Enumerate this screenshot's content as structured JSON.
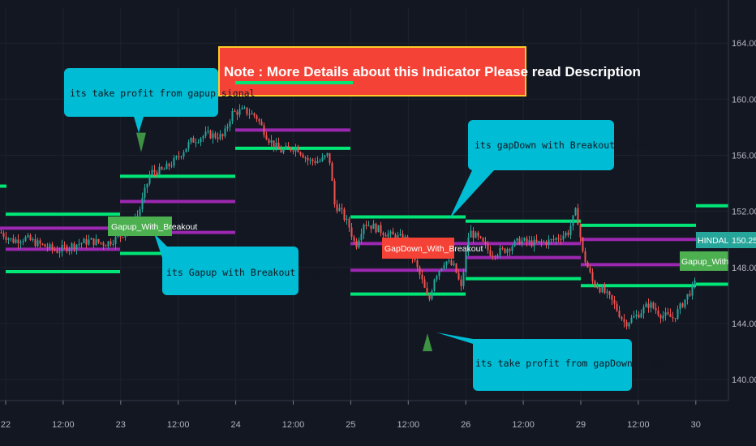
{
  "chart_data": {
    "type": "candlestick",
    "symbol": "HINDALCO",
    "last_price": "150.25",
    "y_ticks": [
      "164.00",
      "160.00",
      "156.00",
      "152.00",
      "148.00",
      "144.00",
      "140.00"
    ],
    "y_range": [
      138.5,
      166.5
    ],
    "x_ticks": [
      "22",
      "12:00",
      "23",
      "12:00",
      "24",
      "12:00",
      "25",
      "12:00",
      "26",
      "12:00",
      "29",
      "12:00",
      "30"
    ],
    "note": "Note : More Details about this Indicator Please read Description",
    "callouts": [
      "its take profit from gapup signal",
      "its Gapup with Breakout signal",
      "its gapDown with Breakout signal",
      "its take profit from gapDown signal"
    ],
    "signal_labels": {
      "gapup": "Gapup_With_Breakout",
      "gapdown": "GapDown_With_Breakout",
      "gapup_right": "Gapup_With_Brea"
    },
    "colors": {
      "background": "#131722",
      "up": "#26a69a",
      "down": "#ef5350",
      "green_level": "#00e676",
      "purple_level": "#9c27b0",
      "callout": "#00bcd4",
      "note_bg": "#f44336",
      "signal_up": "#4caf50",
      "signal_down": "#f44336"
    },
    "levels": [
      {
        "color": "green",
        "y": 153.8,
        "x0": 0,
        "x1": 8
      },
      {
        "color": "green",
        "y": 151.8,
        "x0": 7,
        "x1": 148
      },
      {
        "color": "purple",
        "y": 150.8,
        "x0": 0,
        "x1": 148
      },
      {
        "color": "purple",
        "y": 149.3,
        "x0": 7,
        "x1": 148
      },
      {
        "color": "green",
        "y": 147.7,
        "x0": 7,
        "x1": 148
      },
      {
        "color": "green",
        "y": 154.5,
        "x0": 148,
        "x1": 290
      },
      {
        "color": "purple",
        "y": 152.7,
        "x0": 148,
        "x1": 290
      },
      {
        "color": "purple",
        "y": 150.5,
        "x0": 148,
        "x1": 290
      },
      {
        "color": "green",
        "y": 149.0,
        "x0": 148,
        "x1": 290
      },
      {
        "color": "purple",
        "y": 160.4,
        "x0": 290,
        "x1": 432
      },
      {
        "color": "purple",
        "y": 157.8,
        "x0": 290,
        "x1": 432
      },
      {
        "color": "green",
        "y": 156.5,
        "x0": 290,
        "x1": 432
      },
      {
        "color": "green",
        "y": 151.6,
        "x0": 432,
        "x1": 574
      },
      {
        "color": "purple",
        "y": 149.7,
        "x0": 432,
        "x1": 574
      },
      {
        "color": "purple",
        "y": 147.8,
        "x0": 432,
        "x1": 574
      },
      {
        "color": "green",
        "y": 146.1,
        "x0": 432,
        "x1": 574
      },
      {
        "color": "green",
        "y": 151.3,
        "x0": 574,
        "x1": 716
      },
      {
        "color": "purple",
        "y": 149.7,
        "x0": 574,
        "x1": 716
      },
      {
        "color": "purple",
        "y": 148.7,
        "x0": 574,
        "x1": 716
      },
      {
        "color": "green",
        "y": 147.2,
        "x0": 574,
        "x1": 716
      },
      {
        "color": "green",
        "y": 151.0,
        "x0": 716,
        "x1": 858
      },
      {
        "color": "purple",
        "y": 150.0,
        "x0": 716,
        "x1": 858
      },
      {
        "color": "purple",
        "y": 148.2,
        "x0": 716,
        "x1": 858
      },
      {
        "color": "green",
        "y": 146.7,
        "x0": 716,
        "x1": 858
      },
      {
        "color": "green",
        "y": 152.4,
        "x0": 858,
        "x1": 898
      },
      {
        "color": "green",
        "y": 146.8,
        "x0": 858,
        "x1": 898
      }
    ],
    "price_path": [
      [
        0,
        150.5
      ],
      [
        15,
        149.9
      ],
      [
        30,
        150.1
      ],
      [
        50,
        149.6
      ],
      [
        70,
        149.2
      ],
      [
        90,
        149.6
      ],
      [
        110,
        149.9
      ],
      [
        130,
        149.7
      ],
      [
        147,
        150.2
      ],
      [
        155,
        150.6
      ],
      [
        170,
        151.8
      ],
      [
        185,
        154.8
      ],
      [
        200,
        154.9
      ],
      [
        215,
        155.6
      ],
      [
        235,
        157.0
      ],
      [
        255,
        157.5
      ],
      [
        275,
        157.3
      ],
      [
        285,
        159.0
      ],
      [
        300,
        159.2
      ],
      [
        315,
        158.8
      ],
      [
        330,
        157.2
      ],
      [
        345,
        156.3
      ],
      [
        365,
        156.6
      ],
      [
        380,
        155.6
      ],
      [
        395,
        155.6
      ],
      [
        405,
        156.1
      ],
      [
        412,
        152.5
      ],
      [
        420,
        152.0
      ],
      [
        430,
        150.9
      ],
      [
        438,
        149.5
      ],
      [
        448,
        151.2
      ],
      [
        460,
        150.9
      ],
      [
        480,
        150.3
      ],
      [
        500,
        150.0
      ],
      [
        510,
        148.5
      ],
      [
        520,
        147.0
      ],
      [
        528,
        145.5
      ],
      [
        535,
        147.3
      ],
      [
        548,
        148.5
      ],
      [
        560,
        148.0
      ],
      [
        568,
        146.5
      ],
      [
        578,
        150.6
      ],
      [
        590,
        150.0
      ],
      [
        605,
        149.0
      ],
      [
        620,
        149.2
      ],
      [
        640,
        149.9
      ],
      [
        660,
        149.7
      ],
      [
        680,
        149.9
      ],
      [
        700,
        150.5
      ],
      [
        710,
        152.1
      ],
      [
        718,
        149.0
      ],
      [
        730,
        147.0
      ],
      [
        745,
        146.2
      ],
      [
        755,
        145.5
      ],
      [
        770,
        144.0
      ],
      [
        785,
        144.6
      ],
      [
        800,
        145.4
      ],
      [
        815,
        144.6
      ],
      [
        830,
        144.4
      ],
      [
        845,
        145.8
      ],
      [
        858,
        147.0
      ]
    ],
    "triangles": [
      {
        "dir": "down",
        "x": 174,
        "y": 156.8,
        "color": "green"
      },
      {
        "dir": "up",
        "x": 527,
        "y": 142.6,
        "color": "green"
      }
    ]
  }
}
